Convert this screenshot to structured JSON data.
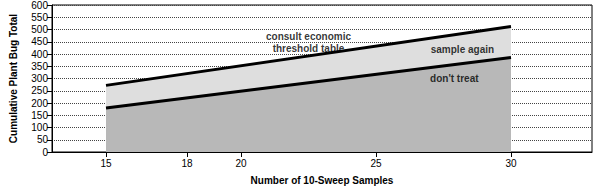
{
  "chart_data": {
    "type": "line",
    "x_label": "Number of 10-Sweep Samples",
    "y_label": "Cumulative Plant Bug Total",
    "x": [
      15,
      30
    ],
    "series": [
      {
        "color": "#000000",
        "values": [
          272,
          512
        ]
      },
      {
        "color": "#000000",
        "values": [
          180,
          386
        ]
      }
    ],
    "xlim": [
      13,
      33
    ],
    "xticks": [
      15,
      18,
      20,
      25,
      30
    ],
    "ylim": [
      0,
      600
    ],
    "yticks": [
      0,
      50,
      100,
      150,
      200,
      250,
      300,
      350,
      400,
      450,
      500,
      550,
      600
    ],
    "grid": true,
    "annotations": [
      {
        "text": "consult economic\nthreshold table",
        "x": 22.5,
        "y": 445
      },
      {
        "text": "sample again",
        "x": 28.2,
        "y": 420
      },
      {
        "text": "don't treat",
        "x": 27.9,
        "y": 300
      }
    ]
  }
}
